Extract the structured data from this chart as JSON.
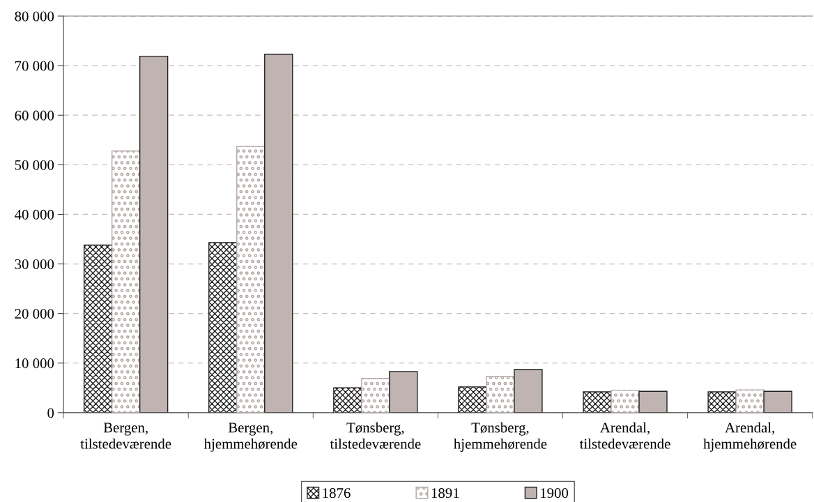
{
  "chart_data": {
    "type": "bar",
    "categories": [
      "Bergen,\ntilstedeværende",
      "Bergen,\nhjemmehørende",
      "Tønsberg,\ntilstedeværende",
      "Tønsberg,\nhjemmehørende",
      "Arendal,\ntilstedeværende",
      "Arendal,\nhjemmehørende"
    ],
    "series": [
      {
        "name": "1876",
        "color": "#222222",
        "values": [
          33800,
          34300,
          5000,
          5200,
          4200,
          4200
        ]
      },
      {
        "name": "1891",
        "color": "#b4a8a6",
        "values": [
          52800,
          53700,
          6900,
          7300,
          4500,
          4600
        ]
      },
      {
        "name": "1900",
        "color": "#c0b4b2",
        "values": [
          71900,
          72300,
          8300,
          8700,
          4300,
          4300
        ]
      }
    ],
    "ylim": [
      0,
      80000
    ],
    "yticks": [
      {
        "value": 0,
        "label": "0"
      },
      {
        "value": 10000,
        "label": "10 000"
      },
      {
        "value": 20000,
        "label": "20 000"
      },
      {
        "value": 30000,
        "label": "30 000"
      },
      {
        "value": 40000,
        "label": "40 000"
      },
      {
        "value": 50000,
        "label": "50 000"
      },
      {
        "value": 60000,
        "label": "60 000"
      },
      {
        "value": 70000,
        "label": "70 000"
      },
      {
        "value": 80000,
        "label": "80 000"
      }
    ],
    "grid": "y",
    "legend": "bottom",
    "line_style": "dashed"
  }
}
